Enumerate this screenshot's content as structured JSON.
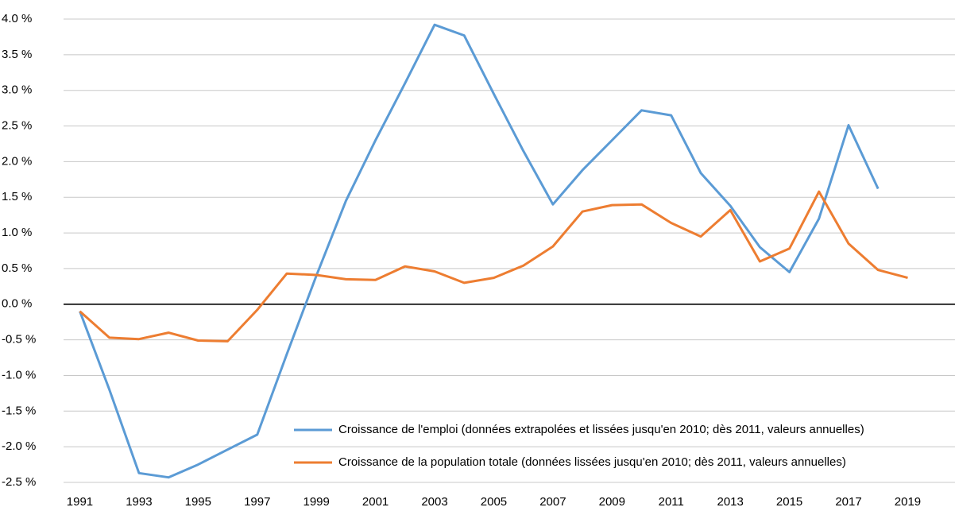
{
  "chart_data": {
    "type": "line",
    "x": [
      1991,
      1992,
      1993,
      1994,
      1995,
      1996,
      1997,
      1998,
      1999,
      2000,
      2001,
      2002,
      2003,
      2004,
      2005,
      2006,
      2007,
      2008,
      2009,
      2010,
      2011,
      2012,
      2013,
      2014,
      2015,
      2016,
      2017,
      2018,
      2019
    ],
    "series": [
      {
        "name": "Croissance de l'emploi (données extrapolées et lissées jusqu'en 2010; dès 2011, valeurs annuelles)",
        "color": "#5b9bd5",
        "values": [
          -0.1,
          -1.2,
          -2.37,
          -2.43,
          -2.25,
          -2.04,
          -1.83,
          -0.7,
          0.4,
          1.45,
          2.3,
          3.1,
          3.92,
          3.77,
          2.95,
          2.15,
          1.4,
          1.88,
          2.3,
          2.72,
          2.65,
          1.84,
          1.38,
          0.8,
          0.45,
          1.2,
          2.51,
          1.62,
          null
        ]
      },
      {
        "name": "Croissance de la population totale (données lissées jusqu'en 2010; dès 2011, valeurs annuelles)",
        "color": "#ed7d31",
        "values": [
          -0.1,
          -0.47,
          -0.49,
          -0.4,
          -0.51,
          -0.52,
          -0.08,
          0.43,
          0.41,
          0.35,
          0.34,
          0.53,
          0.46,
          0.3,
          0.37,
          0.54,
          0.81,
          1.3,
          1.39,
          1.4,
          1.14,
          0.95,
          1.32,
          0.6,
          0.78,
          1.58,
          0.85,
          0.48,
          0.37
        ]
      }
    ],
    "xlim": [
      1990.45,
      2020.6
    ],
    "xticks": [
      1991,
      1993,
      1995,
      1997,
      1999,
      2001,
      2003,
      2005,
      2007,
      2009,
      2011,
      2013,
      2015,
      2017,
      2019
    ],
    "ylim": [
      -2.5,
      4.0
    ],
    "yticks": [
      {
        "value": -2.5,
        "label": "-2.5 %"
      },
      {
        "value": -2.0,
        "label": "-2.0 %"
      },
      {
        "value": -1.5,
        "label": "-1.5 %"
      },
      {
        "value": -1.0,
        "label": "-1.0 %"
      },
      {
        "value": -0.5,
        "label": "-0.5 %"
      },
      {
        "value": 0,
        "label": "0.0 %"
      },
      {
        "value": 0.5,
        "label": "0.5 %"
      },
      {
        "value": 1.0,
        "label": "1.0 %"
      },
      {
        "value": 1.5,
        "label": "1.5 %"
      },
      {
        "value": 2.0,
        "label": "2.0 %"
      },
      {
        "value": 2.5,
        "label": "2.5 %"
      },
      {
        "value": 3.0,
        "label": "3.0 %"
      },
      {
        "value": 3.5,
        "label": "3.5 %"
      },
      {
        "value": 4.0,
        "label": "4.0 %"
      }
    ],
    "grid": true,
    "negative_tick_color": "#ff0000",
    "legend": "lower right"
  }
}
